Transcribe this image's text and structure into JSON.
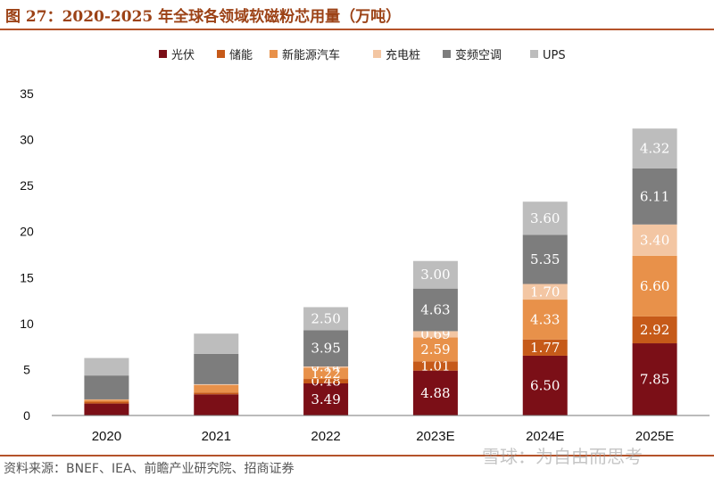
{
  "title": "图 27：2020-2025 年全球各领域软磁粉芯用量（万吨）",
  "source": "资料来源：BNEF、IEA、前瞻产业研究院、招商证券",
  "watermark": "雪球：为自由而思考",
  "chart_data": {
    "type": "bar",
    "stacked": true,
    "categories": [
      "2020",
      "2021",
      "2022",
      "2023E",
      "2024E",
      "2025E"
    ],
    "ylim": [
      0,
      35
    ],
    "yticks": [
      0,
      5,
      10,
      15,
      20,
      25,
      30,
      35
    ],
    "legend_position": "top",
    "series": [
      {
        "name": "光伏",
        "color": "#7b0f17",
        "values": [
          1.3,
          2.3,
          3.49,
          4.88,
          6.5,
          7.85
        ],
        "labels": [
          "",
          "",
          "3.49",
          "4.88",
          "6.50",
          "7.85"
        ]
      },
      {
        "name": "储能",
        "color": "#c65a19",
        "values": [
          0.2,
          0.2,
          0.48,
          1.01,
          1.77,
          2.92
        ],
        "labels": [
          "",
          "",
          "0.48",
          "1.01",
          "1.77",
          "2.92"
        ]
      },
      {
        "name": "新能源汽车",
        "color": "#e8914a",
        "values": [
          0.2,
          0.8,
          1.22,
          2.59,
          4.33,
          6.6
        ],
        "labels": [
          "",
          "",
          "1.22",
          "2.59",
          "4.33",
          "6.60"
        ]
      },
      {
        "name": "充电桩",
        "color": "#f3c6a3",
        "values": [
          0.05,
          0.1,
          0.14,
          0.69,
          1.7,
          3.4
        ],
        "labels": [
          "",
          "",
          "0.14",
          "0.69",
          "1.70",
          "3.40"
        ]
      },
      {
        "name": "变频空调",
        "color": "#7d7d7d",
        "values": [
          2.6,
          3.3,
          3.95,
          4.63,
          5.35,
          6.11
        ],
        "labels": [
          "",
          "",
          "3.95",
          "4.63",
          "5.35",
          "6.11"
        ]
      },
      {
        "name": "UPS",
        "color": "#bdbdbd",
        "values": [
          1.9,
          2.2,
          2.5,
          3.0,
          3.6,
          4.32
        ],
        "labels": [
          "",
          "",
          "2.50",
          "3.00",
          "3.60",
          "4.32"
        ]
      }
    ]
  }
}
